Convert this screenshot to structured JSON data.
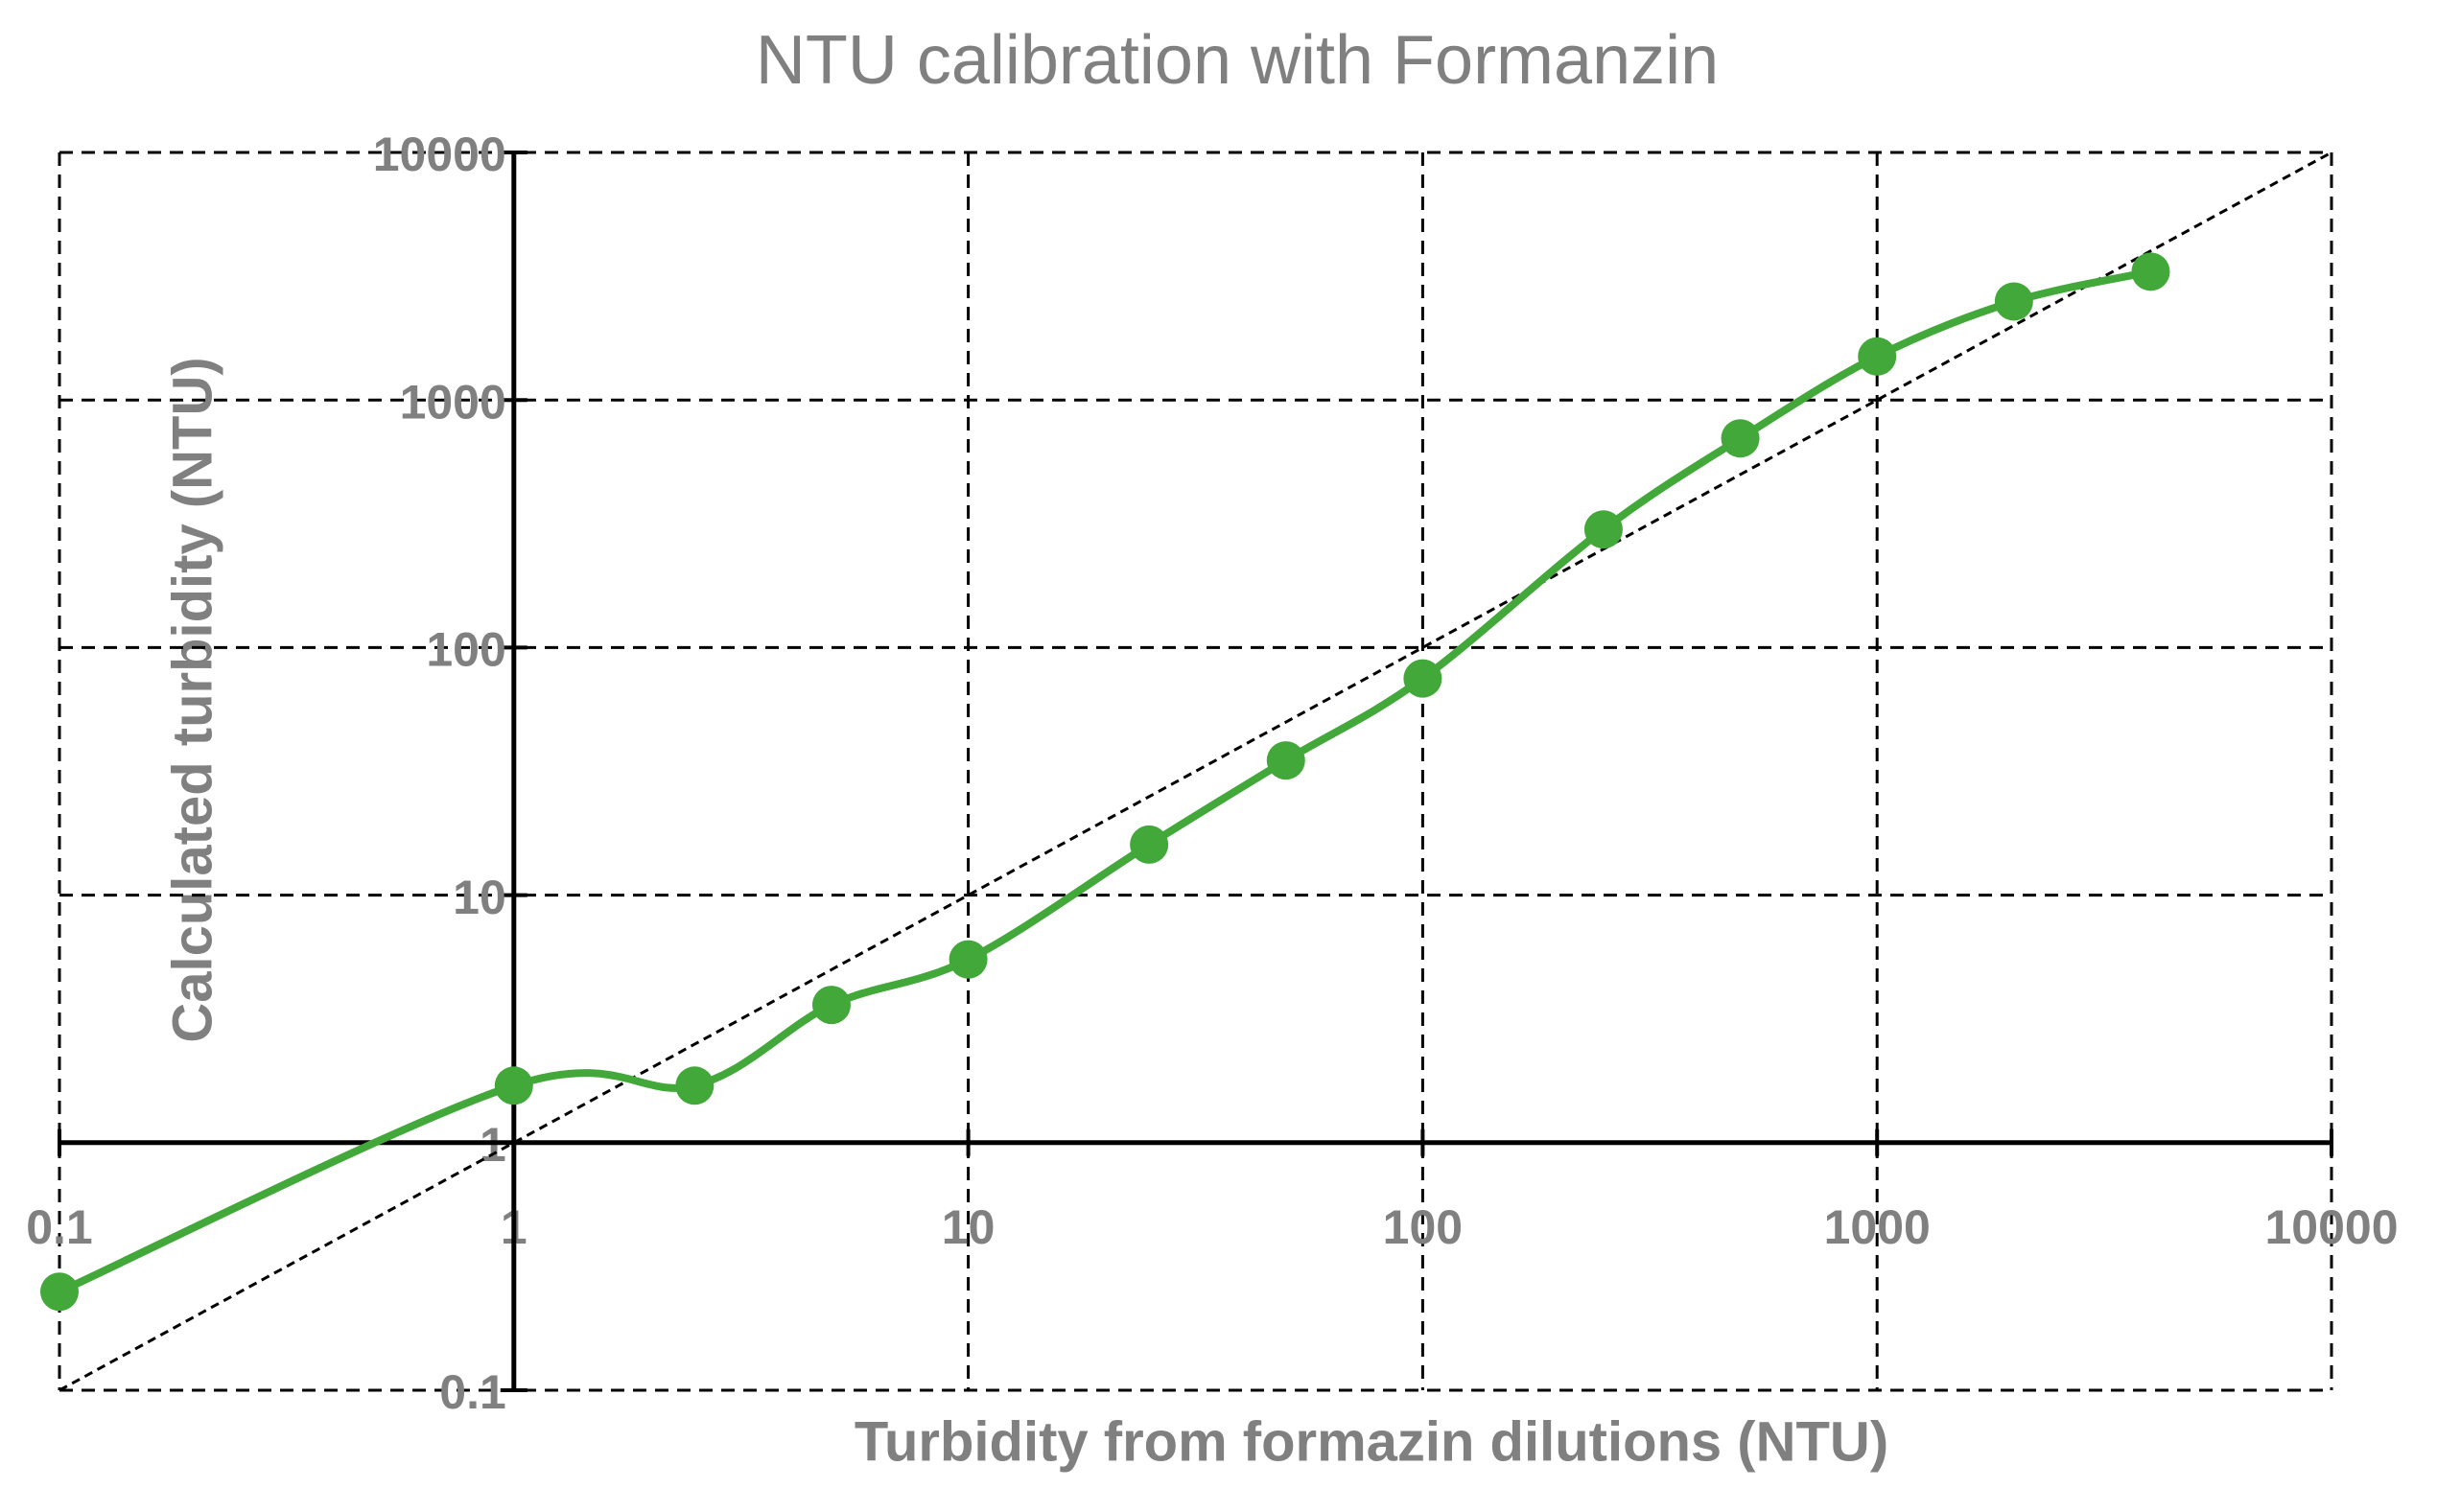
{
  "chart_data": {
    "type": "line",
    "title": "NTU calibration with Formanzin",
    "x_label": "Turbidity from formazin dilutions (NTU)",
    "y_label": "Calculated turbidity (NTU)",
    "x": [
      0.1,
      1,
      2.5,
      5,
      10,
      25,
      50,
      100,
      250,
      500,
      1000,
      2000,
      4000
    ],
    "series": [
      {
        "name": "Calculated turbidity",
        "color": "#43a83a",
        "values": [
          0.25,
          1.7,
          1.7,
          3.6,
          5.5,
          16,
          35,
          75,
          300,
          700,
          1500,
          2500,
          3300
        ]
      }
    ],
    "xlim": [
      0.1,
      10000
    ],
    "ylim": [
      0.1,
      10000
    ],
    "xticks": [
      0.1,
      1,
      10,
      100,
      1000,
      10000
    ],
    "yticks": [
      0.1,
      1,
      10,
      100,
      1000,
      10000
    ],
    "log_x": true,
    "log_y": true,
    "grid": true,
    "reference_line": true
  }
}
